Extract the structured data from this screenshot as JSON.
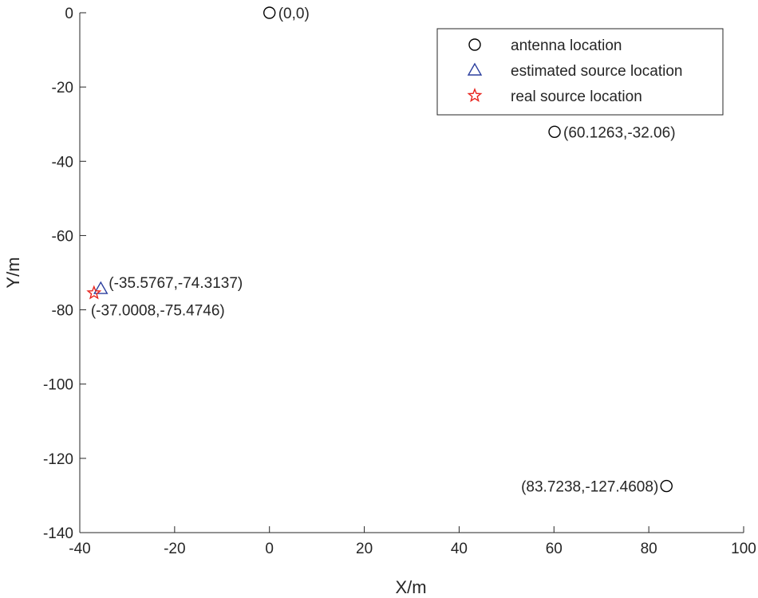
{
  "chart_data": {
    "type": "scatter",
    "title": "",
    "xlabel": "X/m",
    "ylabel": "Y/m",
    "xlim": [
      -40,
      100
    ],
    "ylim": [
      -140,
      0
    ],
    "xticks": [
      -40,
      -20,
      0,
      20,
      40,
      60,
      80,
      100
    ],
    "yticks": [
      0,
      -20,
      -40,
      -60,
      -80,
      -100,
      -120,
      -140
    ],
    "grid": false,
    "legend_position": "top-right",
    "series": [
      {
        "name": "antenna location",
        "marker": "circle",
        "color": "#000000",
        "points": [
          {
            "x": 0,
            "y": 0,
            "label": "(0,0)",
            "label_side": "right"
          },
          {
            "x": 60.1263,
            "y": -32.06,
            "label": "(60.1263,-32.06)",
            "label_side": "right"
          },
          {
            "x": 83.7238,
            "y": -127.4608,
            "label": "(83.7238,-127.4608)",
            "label_side": "left"
          }
        ]
      },
      {
        "name": "estimated source location",
        "marker": "triangle",
        "color": "#2b3f9e",
        "points": [
          {
            "x": -35.5767,
            "y": -74.3137,
            "label": "(-35.5767,-74.3137)",
            "label_side": "above-right"
          }
        ]
      },
      {
        "name": "real source location",
        "marker": "star",
        "color": "#e8231c",
        "points": [
          {
            "x": -37.0008,
            "y": -75.4746,
            "label": "(-37.0008,-75.4746)",
            "label_side": "below"
          }
        ]
      }
    ]
  }
}
